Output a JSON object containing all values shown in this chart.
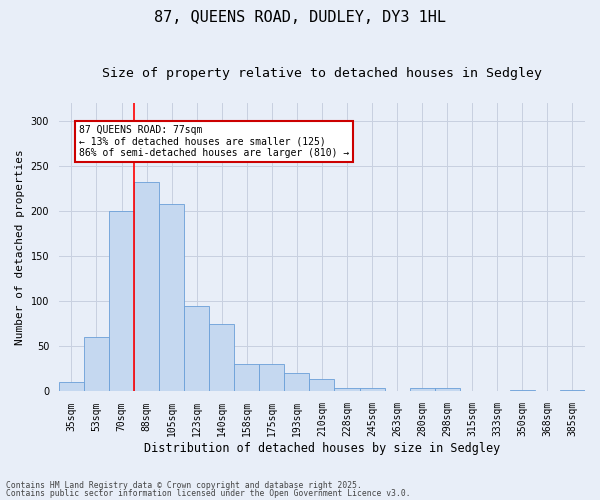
{
  "title_line1": "87, QUEENS ROAD, DUDLEY, DY3 1HL",
  "title_line2": "Size of property relative to detached houses in Sedgley",
  "xlabel": "Distribution of detached houses by size in Sedgley",
  "ylabel": "Number of detached properties",
  "categories": [
    "35sqm",
    "53sqm",
    "70sqm",
    "88sqm",
    "105sqm",
    "123sqm",
    "140sqm",
    "158sqm",
    "175sqm",
    "193sqm",
    "210sqm",
    "228sqm",
    "245sqm",
    "263sqm",
    "280sqm",
    "298sqm",
    "315sqm",
    "333sqm",
    "350sqm",
    "368sqm",
    "385sqm"
  ],
  "values": [
    10,
    60,
    200,
    232,
    208,
    95,
    75,
    30,
    30,
    20,
    14,
    4,
    4,
    0,
    4,
    4,
    0,
    0,
    2,
    0,
    2
  ],
  "bar_color": "#c5d8f0",
  "bar_edge_color": "#6a9fd8",
  "ylim": [
    0,
    320
  ],
  "yticks": [
    0,
    50,
    100,
    150,
    200,
    250,
    300
  ],
  "annotation_text": "87 QUEENS ROAD: 77sqm\n← 13% of detached houses are smaller (125)\n86% of semi-detached houses are larger (810) →",
  "annotation_box_color": "#ffffff",
  "annotation_box_edge": "#cc0000",
  "footer_line1": "Contains HM Land Registry data © Crown copyright and database right 2025.",
  "footer_line2": "Contains public sector information licensed under the Open Government Licence v3.0.",
  "bg_color": "#e8eef8",
  "grid_color": "#c8d0e0",
  "title_fontsize": 11,
  "subtitle_fontsize": 9.5,
  "tick_fontsize": 7,
  "ylabel_fontsize": 8,
  "xlabel_fontsize": 8.5,
  "footer_fontsize": 5.8,
  "annot_fontsize": 7
}
